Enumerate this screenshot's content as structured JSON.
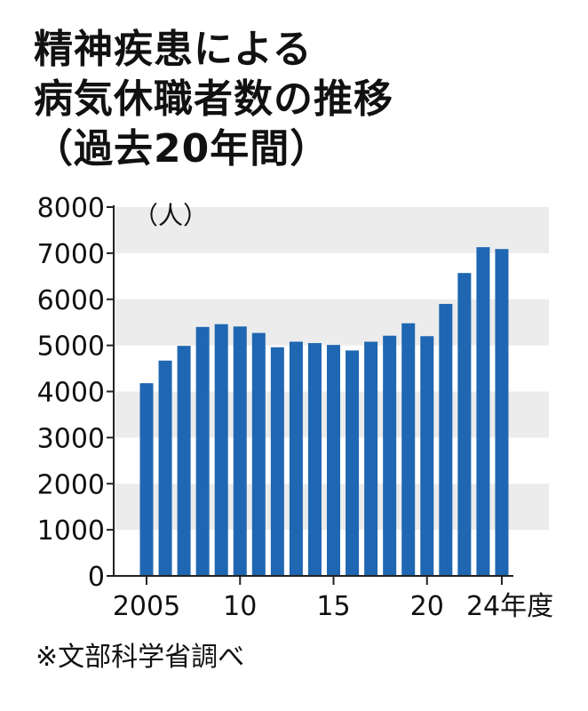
{
  "title": {
    "line1": "精神疾患による",
    "line2": "病気休職者数の推移",
    "line3": "（過去20年間）"
  },
  "unit_label": "（人）",
  "source": "※文部科学省調べ",
  "colors": {
    "bar": "#1f67b2",
    "band": "#ececec",
    "axis": "#222222",
    "text": "#111111"
  },
  "chart_data": {
    "type": "bar",
    "categories": [
      "2005",
      "2006",
      "2007",
      "2008",
      "2009",
      "2010",
      "2011",
      "2012",
      "2013",
      "2014",
      "2015",
      "2016",
      "2017",
      "2018",
      "2019",
      "2020",
      "2021",
      "2022",
      "2023",
      "2024"
    ],
    "values": [
      4180,
      4670,
      4990,
      5400,
      5460,
      5410,
      5270,
      4960,
      5080,
      5050,
      5010,
      4890,
      5080,
      5210,
      5480,
      5200,
      5900,
      6570,
      7130,
      7090
    ],
    "x_tick_labels": [
      {
        "index": 0,
        "label": "2005"
      },
      {
        "index": 5,
        "label": "10"
      },
      {
        "index": 10,
        "label": "15"
      },
      {
        "index": 15,
        "label": "20"
      },
      {
        "index": 19,
        "label": "24年度"
      }
    ],
    "y_ticks": [
      "0",
      "1000",
      "2000",
      "3000",
      "4000",
      "5000",
      "6000",
      "7000",
      "8000"
    ],
    "ylim": [
      0,
      8000
    ],
    "ylabel": "（人）",
    "xlabel": "",
    "grid": "alternating horizontal bands"
  }
}
